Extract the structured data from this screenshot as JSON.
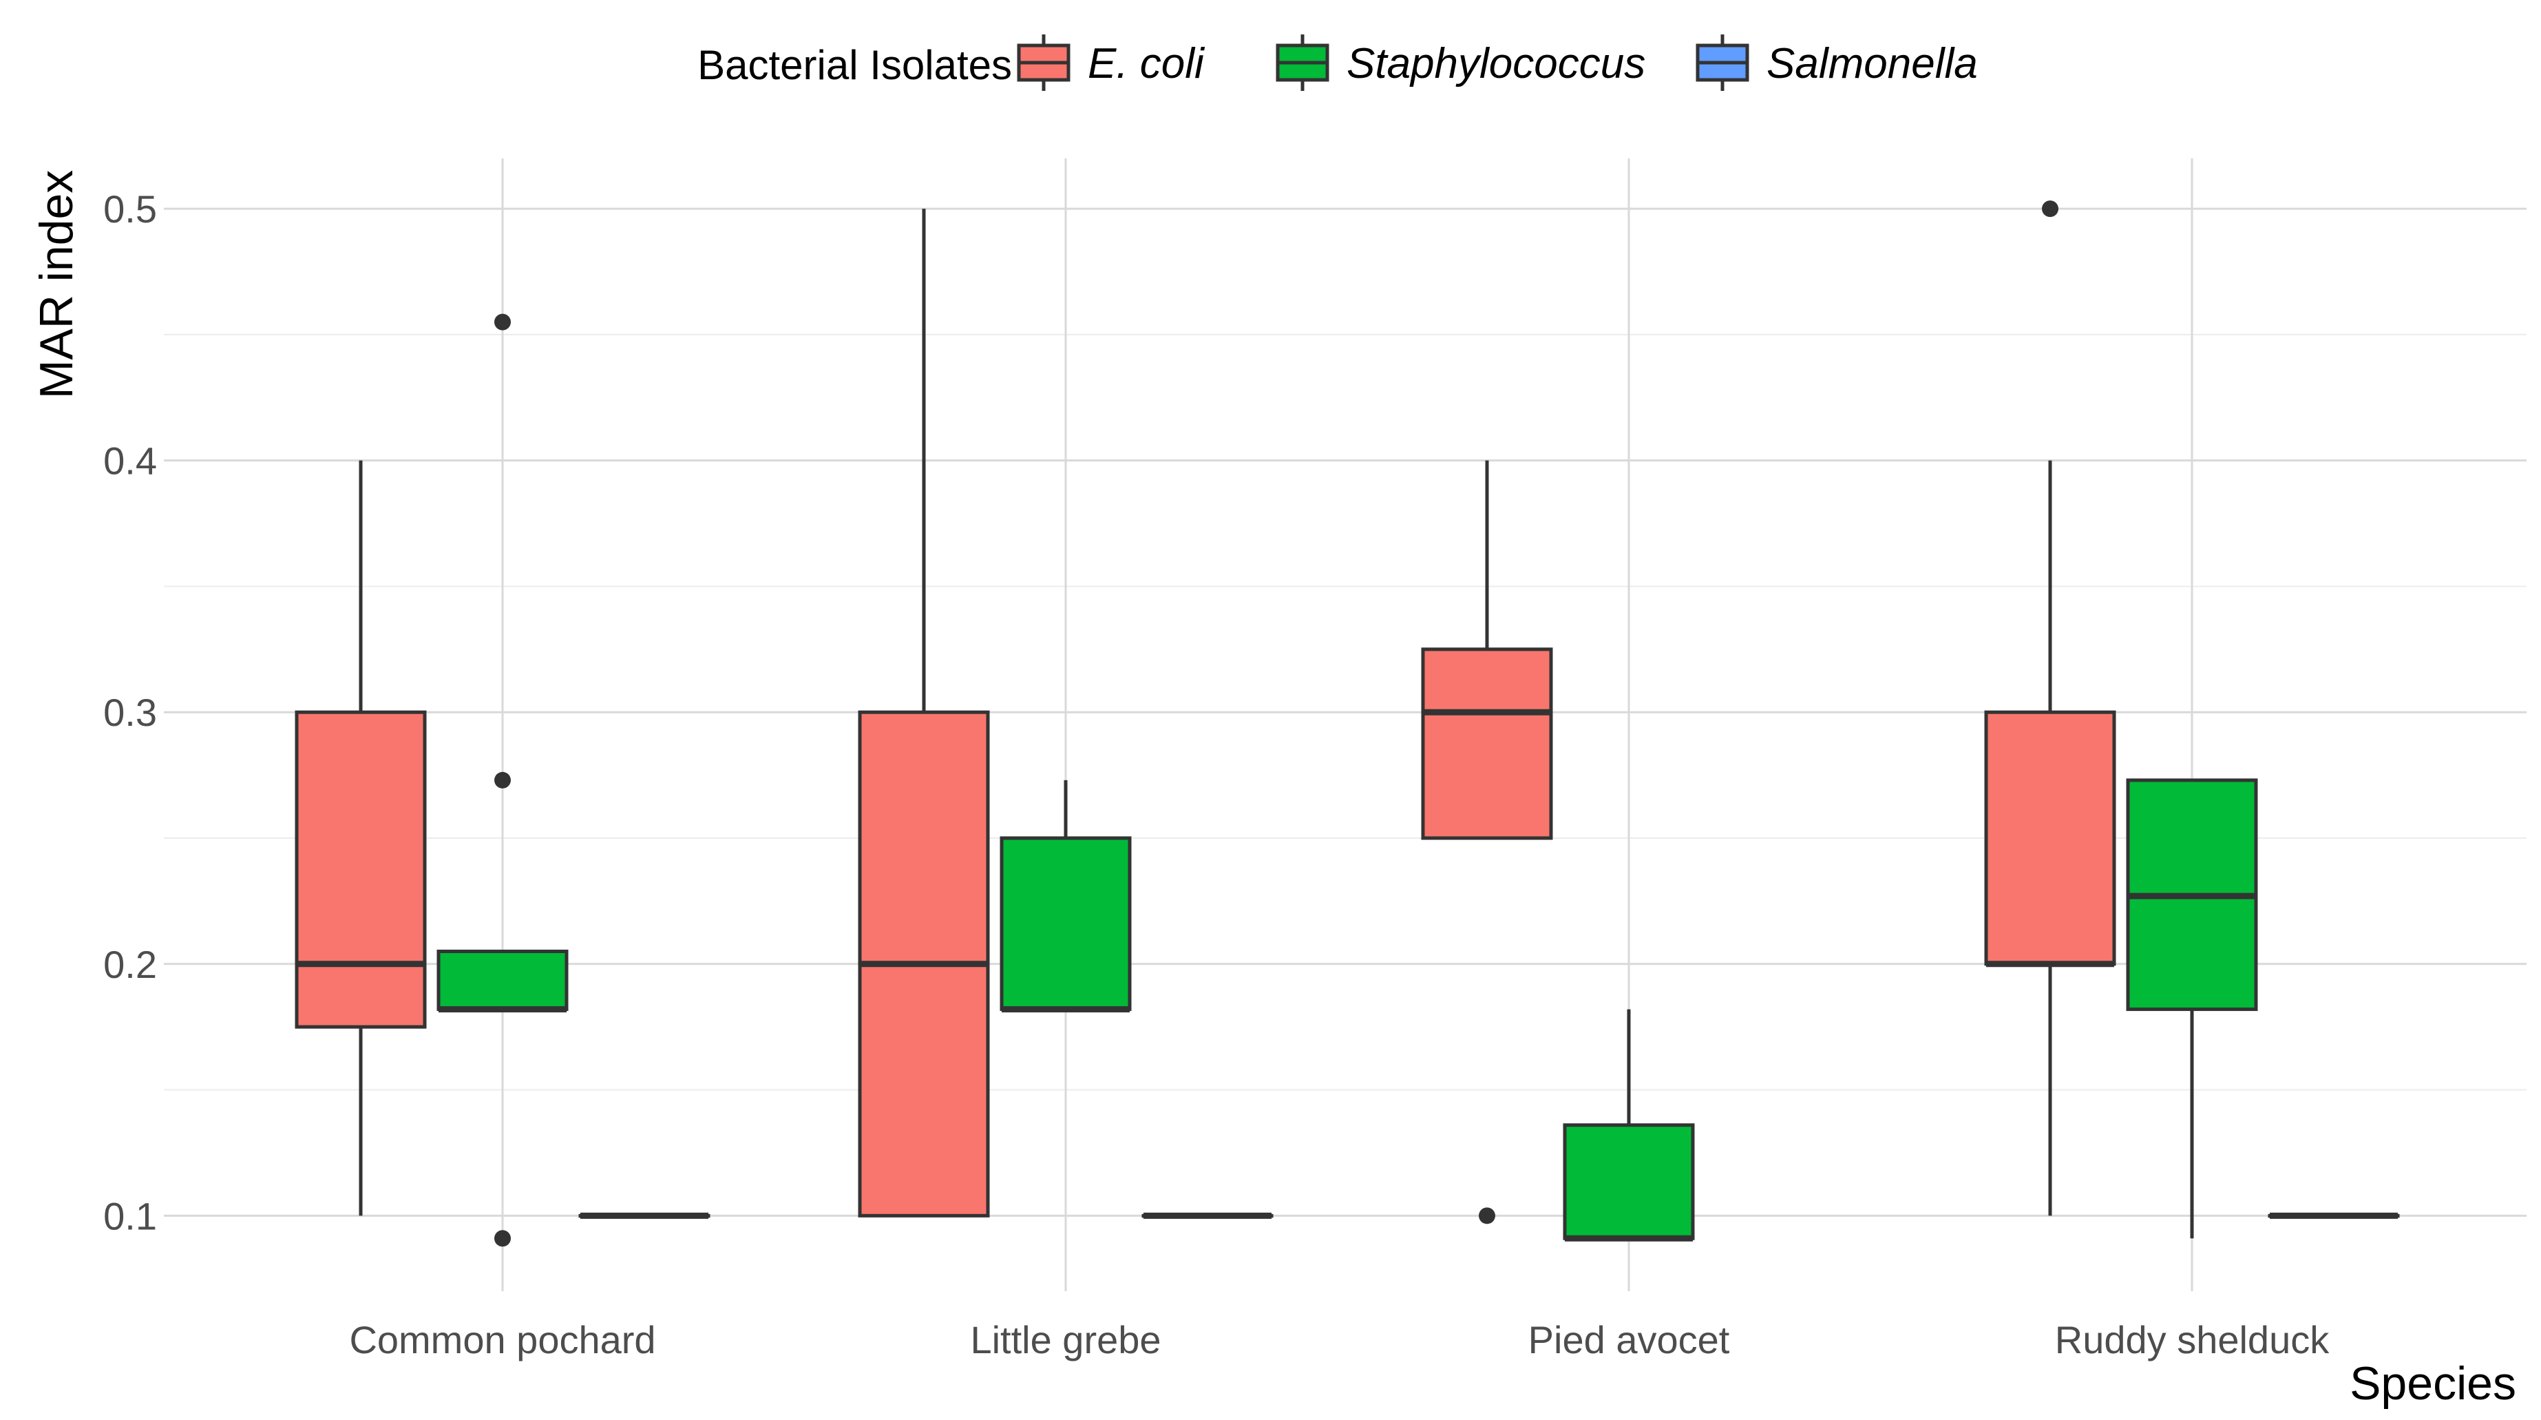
{
  "chart_data": {
    "type": "boxplot",
    "title": "",
    "xlabel": "Species",
    "ylabel": "MAR index",
    "ylim": [
      0.07,
      0.52
    ],
    "yticks": [
      0.1,
      0.2,
      0.3,
      0.4,
      0.5
    ],
    "ytick_labels": [
      "0.1",
      "0.2",
      "0.3",
      "0.4",
      "0.5"
    ],
    "grid": true,
    "legend": {
      "title": "Bacterial Isolates",
      "position": "top"
    },
    "categories": [
      "Common pochard",
      "Little grebe",
      "Pied avocet",
      "Ruddy shelduck"
    ],
    "series": [
      {
        "name": "E. coli",
        "color": "#F8766D",
        "boxes": [
          {
            "category": "Common pochard",
            "whisker_low": 0.1,
            "q1": 0.175,
            "median": 0.2,
            "q3": 0.3,
            "whisker_high": 0.4,
            "outliers": []
          },
          {
            "category": "Little grebe",
            "whisker_low": 0.1,
            "q1": 0.1,
            "median": 0.2,
            "q3": 0.3,
            "whisker_high": 0.5,
            "outliers": []
          },
          {
            "category": "Pied avocet",
            "whisker_low": 0.25,
            "q1": 0.25,
            "median": 0.3,
            "q3": 0.325,
            "whisker_high": 0.4,
            "outliers": [
              0.1
            ]
          },
          {
            "category": "Ruddy shelduck",
            "whisker_low": 0.1,
            "q1": 0.2,
            "median": 0.2,
            "q3": 0.3,
            "whisker_high": 0.4,
            "outliers": [
              0.5
            ]
          }
        ]
      },
      {
        "name": "Staphylococcus",
        "color": "#00BA38",
        "boxes": [
          {
            "category": "Common pochard",
            "whisker_low": 0.182,
            "q1": 0.182,
            "median": 0.182,
            "q3": 0.205,
            "whisker_high": 0.205,
            "outliers": [
              0.455,
              0.273,
              0.091
            ]
          },
          {
            "category": "Little grebe",
            "whisker_low": 0.182,
            "q1": 0.182,
            "median": 0.182,
            "q3": 0.25,
            "whisker_high": 0.273,
            "outliers": []
          },
          {
            "category": "Pied avocet",
            "whisker_low": 0.091,
            "q1": 0.091,
            "median": 0.091,
            "q3": 0.136,
            "whisker_high": 0.182,
            "outliers": []
          },
          {
            "category": "Ruddy shelduck",
            "whisker_low": 0.091,
            "q1": 0.182,
            "median": 0.227,
            "q3": 0.273,
            "whisker_high": 0.273,
            "outliers": []
          }
        ]
      },
      {
        "name": "Salmonella",
        "color": "#619CFF",
        "boxes": [
          {
            "category": "Common pochard",
            "whisker_low": 0.1,
            "q1": 0.1,
            "median": 0.1,
            "q3": 0.1,
            "whisker_high": 0.1,
            "outliers": []
          },
          {
            "category": "Little grebe",
            "whisker_low": 0.1,
            "q1": 0.1,
            "median": 0.1,
            "q3": 0.1,
            "whisker_high": 0.1,
            "outliers": []
          },
          {
            "category": "Pied avocet",
            "whisker_low": null,
            "q1": null,
            "median": null,
            "q3": null,
            "whisker_high": null,
            "outliers": []
          },
          {
            "category": "Ruddy shelduck",
            "whisker_low": 0.1,
            "q1": 0.1,
            "median": 0.1,
            "q3": 0.1,
            "whisker_high": 0.1,
            "outliers": []
          }
        ]
      }
    ]
  }
}
